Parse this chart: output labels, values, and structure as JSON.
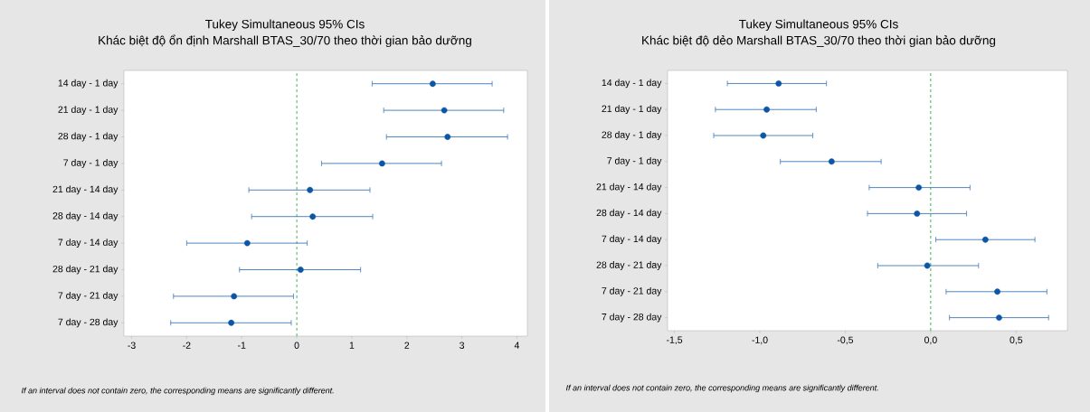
{
  "chart_data": [
    {
      "type": "scatter",
      "orientation": "horizontal",
      "title": "Tukey Simultaneous 95% CIs",
      "subtitle": "Khác biệt độ ổn định Marshall BTAS_30/70 theo thời gian bảo dưỡng",
      "categories": [
        "14 day - 1 day",
        "21 day - 1 day",
        "28 day - 1 day",
        "7 day - 1 day",
        "21 day - 14 day",
        "28 day - 14 day",
        "7 day - 14 day",
        "28 day - 21 day",
        "7 day - 21 day",
        "7 day - 28 day"
      ],
      "values": [
        2.47,
        2.68,
        2.74,
        1.55,
        0.24,
        0.29,
        -0.9,
        0.07,
        -1.14,
        -1.19
      ],
      "errors": [
        [
          1.37,
          3.55
        ],
        [
          1.58,
          3.76
        ],
        [
          1.63,
          3.83
        ],
        [
          0.45,
          2.63
        ],
        [
          -0.87,
          1.33
        ],
        [
          -0.82,
          1.38
        ],
        [
          -2.0,
          0.19
        ],
        [
          -1.04,
          1.16
        ],
        [
          -2.24,
          -0.06
        ],
        [
          -2.29,
          -0.1
        ]
      ],
      "color": "#0d56a6",
      "marker": "circle",
      "xlim": [
        -3.14,
        4.19
      ],
      "xticks": [
        -3,
        -2,
        -1,
        0,
        1,
        2,
        3,
        4
      ],
      "ref_lines": [
        {
          "axis": "x",
          "value": 0,
          "color": "#21a038",
          "line_style": "dashed"
        }
      ],
      "annotations": [
        "If an interval does not contain zero, the corresponding means are significantly different."
      ]
    },
    {
      "type": "scatter",
      "orientation": "horizontal",
      "title": "Tukey Simultaneous 95% CIs",
      "subtitle": "Khác biệt độ dẻo Marshall BTAS_30/70 theo thời gian bảo dưỡng",
      "categories": [
        "14 day - 1 day",
        "21 day - 1 day",
        "28 day - 1 day",
        "7 day - 1 day",
        "21 day - 14 day",
        "28 day - 14 day",
        "7 day - 14 day",
        "28 day - 21 day",
        "7 day - 21 day",
        "7 day - 28 day"
      ],
      "values": [
        -0.89,
        -0.96,
        -0.98,
        -0.58,
        -0.07,
        -0.08,
        0.32,
        -0.02,
        0.39,
        0.4
      ],
      "errors": [
        [
          -1.19,
          -0.61
        ],
        [
          -1.26,
          -0.67
        ],
        [
          -1.27,
          -0.69
        ],
        [
          -0.88,
          -0.29
        ],
        [
          -0.36,
          0.23
        ],
        [
          -0.37,
          0.21
        ],
        [
          0.03,
          0.61
        ],
        [
          -0.31,
          0.28
        ],
        [
          0.09,
          0.68
        ],
        [
          0.11,
          0.69
        ]
      ],
      "color": "#0d56a6",
      "marker": "circle",
      "xlim": [
        -1.54,
        0.8
      ],
      "xticks": [
        {
          "value": -1.5,
          "label": "-1,5"
        },
        {
          "value": -1.0,
          "label": "-1,0"
        },
        {
          "value": -0.5,
          "label": "-0,5"
        },
        {
          "value": 0.0,
          "label": "0,0"
        },
        {
          "value": 0.5,
          "label": "0,5"
        }
      ],
      "ref_lines": [
        {
          "axis": "x",
          "value": 0,
          "color": "#21a038",
          "line_style": "dashed"
        }
      ],
      "annotations": [
        "If an interval does not contain zero, the corresponding means are significantly different."
      ]
    }
  ]
}
